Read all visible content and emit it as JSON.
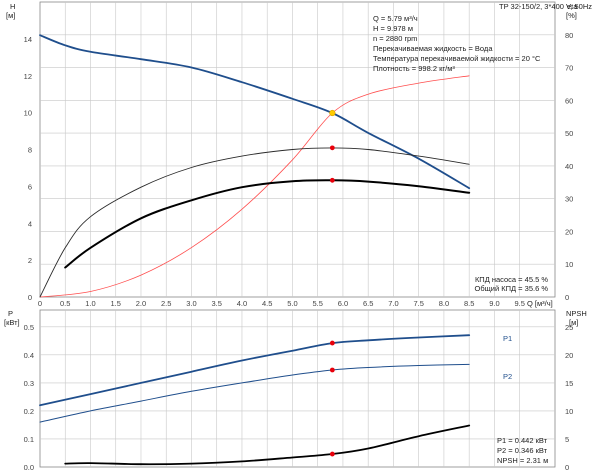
{
  "title": "TP 32-150/2, 3*400 V, 50Hz",
  "info": [
    "Q = 5.79 м³/ч",
    "H = 9.978 м",
    "n = 2880 rpm",
    "Перекачиваемая жидкость = Вода",
    "Температура перекачиваемой жидкости = 20 °C",
    "Плотность = 998.2 кг/м³"
  ],
  "eff_labels": [
    "КПД насоса = 45.5 %",
    "Общий КПД = 35.6 %"
  ],
  "power_labels": [
    "P1 = 0.442 кВт",
    "P2 = 0.346 кВт",
    "NPSH = 2.31 м"
  ],
  "top_axes": {
    "y_left_label": [
      "H",
      "[м]"
    ],
    "y_right_label": [
      "eta",
      "[%]"
    ],
    "x_label": "Q [м³/ч]"
  },
  "bottom_axes": {
    "y_left_label": [
      "P",
      "[кВт]"
    ],
    "y_right_label": [
      "NPSH",
      "[м]"
    ]
  },
  "colors": {
    "curve": "#1f4e8c",
    "efficiency": "#000000",
    "system": "#ff4d4d",
    "point": "#e8000b",
    "duty": "#ffcc00"
  },
  "chart_data": [
    {
      "type": "line",
      "title": "",
      "xlabel": "Q [м³/ч]",
      "ylabel": "H [м]",
      "y2label": "eta [%]",
      "xlim": [
        0,
        10.2
      ],
      "ylim": [
        0,
        16
      ],
      "y2lim": [
        0,
        90
      ],
      "x_ticks": [
        "0",
        "0.5",
        "1.0",
        "1.5",
        "2.0",
        "2.5",
        "3.0",
        "3.5",
        "4.0",
        "4.5",
        "5.0",
        "5.5",
        "6.0",
        "6.5",
        "7.0",
        "7.5",
        "8.0",
        "8.5",
        "9.0",
        "9.5"
      ],
      "y_ticks": [
        "0",
        "2",
        "4",
        "6",
        "8",
        "10",
        "12",
        "14"
      ],
      "y2_ticks": [
        "0",
        "10",
        "20",
        "30",
        "40",
        "50",
        "60",
        "70",
        "80"
      ],
      "series": [
        {
          "axis": "left",
          "x": [
            0,
            0.5,
            1,
            2,
            3,
            4,
            5,
            5.79,
            6.5,
            7.5,
            8.5
          ],
          "values": [
            14.2,
            13.65,
            13.3,
            12.9,
            12.45,
            11.65,
            10.75,
            9.978,
            8.9,
            7.5,
            5.9
          ]
        },
        {
          "axis": "left",
          "x": [
            0,
            1,
            2,
            3,
            4,
            5,
            5.79,
            6.5,
            7.5,
            8.5
          ],
          "values": [
            0,
            0.3,
            1.19,
            2.68,
            4.76,
            7.44,
            9.978,
            11.0,
            11.6,
            12.0
          ]
        },
        {
          "axis": "right",
          "x": [
            0,
            0.5,
            1,
            2,
            3,
            4,
            5,
            5.79,
            6.5,
            7.5,
            8.5
          ],
          "values": [
            0,
            15,
            24.5,
            33.5,
            39.5,
            43,
            45,
            45.5,
            45,
            43,
            40.5
          ]
        },
        {
          "axis": "right",
          "x": [
            0.5,
            1,
            2,
            3,
            4,
            5,
            5.79,
            6.5,
            7.5,
            8.5
          ],
          "values": [
            9,
            15,
            24,
            29.5,
            33.5,
            35.3,
            35.6,
            35.2,
            33.8,
            31.8
          ]
        }
      ],
      "duty_point": {
        "x": 5.79,
        "H": 9.978,
        "eta_pump": 45.5,
        "eta_total": 35.6
      }
    },
    {
      "type": "line",
      "title": "",
      "xlabel": "",
      "ylabel": "P [кВт]",
      "y2label": "NPSH [м]",
      "xlim": [
        0,
        10.2
      ],
      "ylim": [
        0,
        0.56
      ],
      "y2lim": [
        0,
        28
      ],
      "y_ticks": [
        "0.0",
        "0.1",
        "0.2",
        "0.3",
        "0.4",
        "0.5"
      ],
      "y2_ticks": [
        "0",
        "5",
        "10",
        "15",
        "20",
        "25"
      ],
      "series": [
        {
          "name": "P1",
          "axis": "left",
          "x": [
            0,
            1,
            2,
            3,
            4,
            5,
            5.79,
            6.5,
            7.5,
            8.5
          ],
          "values": [
            0.22,
            0.26,
            0.3,
            0.34,
            0.38,
            0.415,
            0.442,
            0.452,
            0.462,
            0.47
          ]
        },
        {
          "name": "P2",
          "axis": "left",
          "x": [
            0,
            1,
            2,
            3,
            4,
            5,
            5.79,
            6.5,
            7.5,
            8.5
          ],
          "values": [
            0.16,
            0.2,
            0.235,
            0.27,
            0.3,
            0.328,
            0.346,
            0.355,
            0.362,
            0.366
          ]
        },
        {
          "axis": "right",
          "x": [
            0.5,
            1,
            2,
            3,
            4,
            5,
            5.79,
            6.5,
            7.5,
            8.5
          ],
          "values": [
            0.6,
            0.7,
            0.5,
            0.6,
            1.0,
            1.7,
            2.31,
            3.3,
            5.5,
            7.4
          ]
        }
      ],
      "duty_point": {
        "x": 5.79,
        "P1": 0.442,
        "P2": 0.346,
        "NPSH": 2.31
      }
    }
  ]
}
